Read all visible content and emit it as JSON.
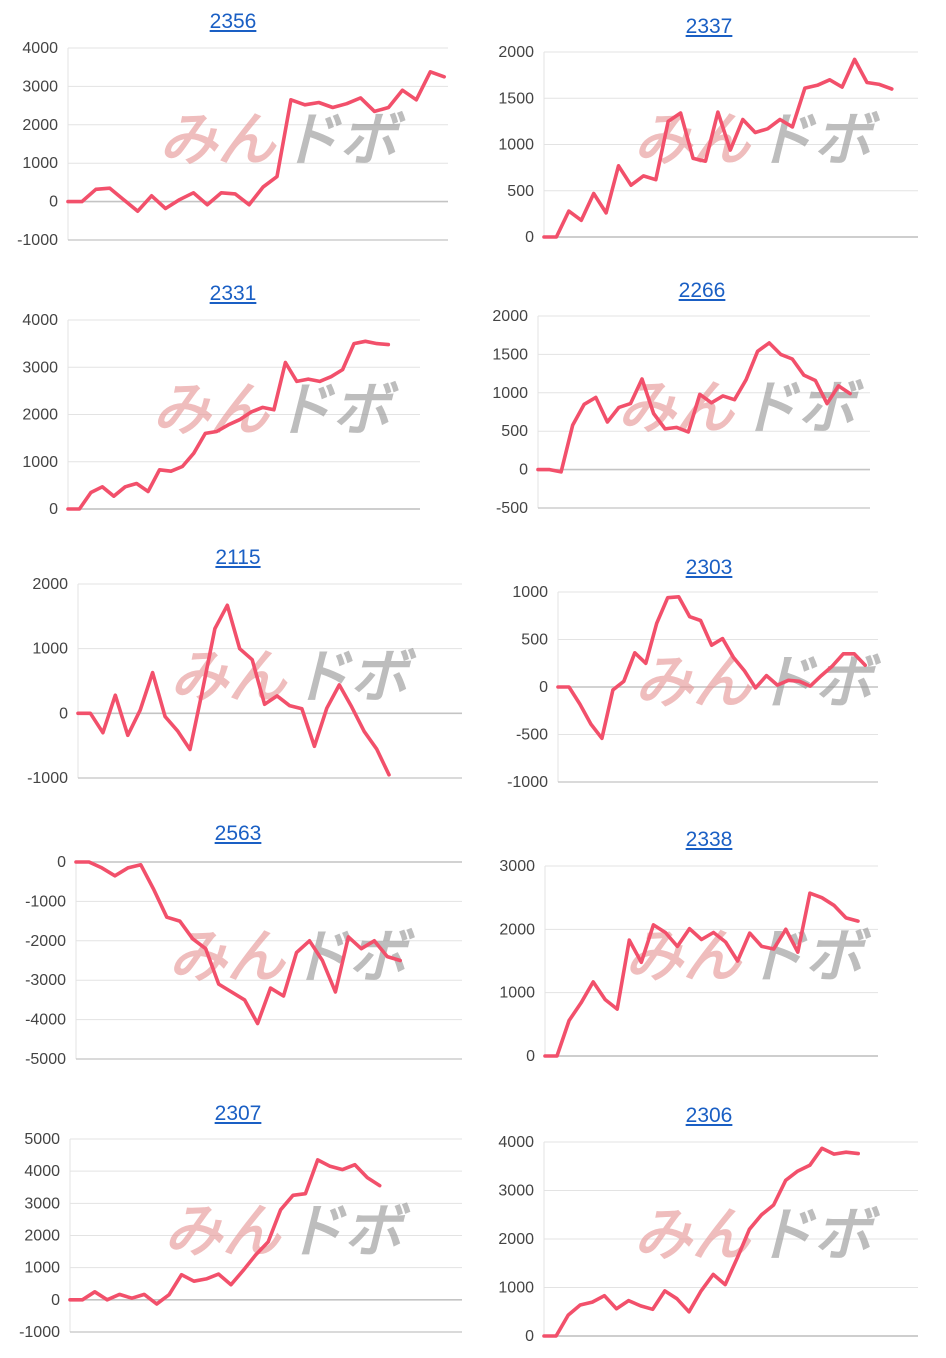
{
  "colors": {
    "line": "#f2506b",
    "grid": "#e3e3e3",
    "axis": "#c4c4c4",
    "title_link": "#1a5fc4"
  },
  "watermark": {
    "red_part": "みん",
    "gray_part": "ドボ",
    "icon": "logo-watermark"
  },
  "chart_data": [
    {
      "type": "line",
      "title": "2356",
      "ylim": [
        -1000,
        4000
      ],
      "yticks": [
        4000,
        3000,
        2000,
        1000,
        0,
        -1000
      ],
      "values": [
        0,
        0,
        320,
        350,
        50,
        -250,
        150,
        -180,
        50,
        230,
        -80,
        230,
        200,
        -80,
        380,
        650,
        2650,
        2520,
        2580,
        2450,
        2550,
        2700,
        2350,
        2450,
        2900,
        2650,
        3380,
        3250
      ]
    },
    {
      "type": "line",
      "title": "2337",
      "ylim": [
        0,
        2000
      ],
      "yticks": [
        2000,
        1500,
        1000,
        500,
        0
      ],
      "values": [
        0,
        0,
        280,
        180,
        470,
        260,
        770,
        560,
        660,
        620,
        1250,
        1340,
        850,
        820,
        1350,
        940,
        1270,
        1130,
        1170,
        1270,
        1190,
        1610,
        1640,
        1700,
        1620,
        1920,
        1670,
        1650,
        1600
      ]
    },
    {
      "type": "line",
      "title": "2331",
      "ylim": [
        0,
        4000
      ],
      "yticks": [
        4000,
        3000,
        2000,
        1000,
        0
      ],
      "values": [
        0,
        0,
        350,
        470,
        270,
        470,
        540,
        370,
        830,
        800,
        900,
        1180,
        1600,
        1640,
        1780,
        1890,
        2050,
        2150,
        2100,
        3100,
        2700,
        2750,
        2700,
        2800,
        2950,
        3500,
        3550,
        3500,
        3480
      ]
    },
    {
      "type": "line",
      "title": "2266",
      "ylim": [
        -500,
        2000
      ],
      "yticks": [
        2000,
        1500,
        1000,
        500,
        0,
        -500
      ],
      "values": [
        0,
        0,
        -30,
        580,
        850,
        940,
        620,
        810,
        860,
        1180,
        730,
        530,
        550,
        490,
        980,
        870,
        960,
        910,
        1170,
        1540,
        1650,
        1500,
        1440,
        1230,
        1160,
        860,
        1090,
        990
      ]
    },
    {
      "type": "line",
      "title": "2115",
      "ylim": [
        -1000,
        2000
      ],
      "yticks": [
        2000,
        1000,
        0,
        -1000
      ],
      "values": [
        0,
        0,
        -300,
        280,
        -340,
        50,
        630,
        -50,
        -270,
        -560,
        350,
        1310,
        1670,
        1000,
        830,
        140,
        270,
        120,
        70,
        -510,
        80,
        440,
        100,
        -280,
        -550,
        -950
      ]
    },
    {
      "type": "line",
      "title": "2303",
      "ylim": [
        -1000,
        1000
      ],
      "yticks": [
        1000,
        500,
        0,
        -500,
        -1000
      ],
      "values": [
        0,
        0,
        -180,
        -390,
        -540,
        -30,
        60,
        360,
        250,
        670,
        940,
        950,
        740,
        700,
        440,
        510,
        310,
        170,
        -10,
        120,
        20,
        70,
        60,
        10,
        120,
        220,
        350,
        350,
        230
      ]
    },
    {
      "type": "line",
      "title": "2563",
      "ylim": [
        -5000,
        0
      ],
      "yticks": [
        0,
        -1000,
        -2000,
        -3000,
        -4000,
        -5000
      ],
      "values": [
        0,
        0,
        -150,
        -350,
        -150,
        -70,
        -700,
        -1400,
        -1500,
        -1950,
        -2200,
        -3100,
        -3300,
        -3500,
        -4100,
        -3200,
        -3400,
        -2300,
        -2000,
        -2500,
        -3300,
        -1900,
        -2200,
        -2000,
        -2400,
        -2500
      ]
    },
    {
      "type": "line",
      "title": "2338",
      "ylim": [
        0,
        3000
      ],
      "yticks": [
        3000,
        2000,
        1000,
        0
      ],
      "values": [
        0,
        0,
        560,
        840,
        1170,
        890,
        740,
        1830,
        1480,
        2070,
        1950,
        1730,
        2010,
        1840,
        1950,
        1800,
        1500,
        1940,
        1730,
        1690,
        2000,
        1640,
        2570,
        2500,
        2380,
        2180,
        2130
      ]
    },
    {
      "type": "line",
      "title": "2307",
      "ylim": [
        -1000,
        5000
      ],
      "yticks": [
        5000,
        4000,
        3000,
        2000,
        1000,
        0,
        -1000
      ],
      "values": [
        0,
        0,
        250,
        0,
        170,
        50,
        170,
        -130,
        160,
        780,
        580,
        650,
        800,
        470,
        920,
        1400,
        1800,
        2800,
        3250,
        3300,
        4350,
        4150,
        4050,
        4200,
        3800,
        3550
      ]
    },
    {
      "type": "line",
      "title": "2306",
      "ylim": [
        0,
        4000
      ],
      "yticks": [
        4000,
        3000,
        2000,
        1000,
        0
      ],
      "values": [
        0,
        0,
        430,
        640,
        700,
        830,
        560,
        730,
        620,
        550,
        930,
        770,
        500,
        930,
        1270,
        1060,
        1610,
        2200,
        2500,
        2700,
        3210,
        3400,
        3520,
        3870,
        3750,
        3790,
        3760
      ]
    }
  ]
}
